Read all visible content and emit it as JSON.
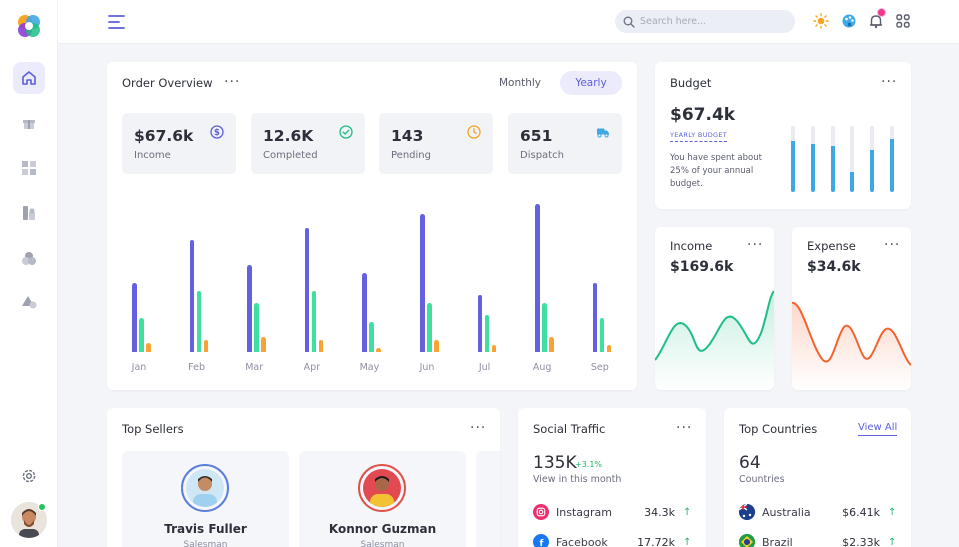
{
  "topbar": {
    "search_placeholder": "Search here..."
  },
  "sidebar": {
    "items": [
      "home",
      "gift",
      "grid",
      "pages",
      "shapes",
      "triangle"
    ],
    "settings": "settings",
    "online_status_color": "#22c55e"
  },
  "order_overview": {
    "title": "Order Overview",
    "toggle_monthly": "Monthly",
    "toggle_yearly": "Yearly",
    "stats": [
      {
        "value": "$67.6k",
        "label": "Income",
        "icon": "dollar-icon",
        "color": "#5d5fdb"
      },
      {
        "value": "12.6K",
        "label": "Completed",
        "icon": "check-circle-icon",
        "color": "#1fbf84"
      },
      {
        "value": "143",
        "label": "Pending",
        "icon": "clock-icon",
        "color": "#f5a524"
      },
      {
        "value": "651",
        "label": "Dispatch",
        "icon": "truck-icon",
        "color": "#3ea8e5"
      }
    ]
  },
  "chart_data": {
    "type": "bar",
    "title": "Order Overview",
    "categories": [
      "Jan",
      "Feb",
      "Mar",
      "Apr",
      "May",
      "Jun",
      "Jul",
      "Aug",
      "Sep"
    ],
    "series": [
      {
        "name": "Income",
        "color": "#6461e0",
        "values": [
          46,
          75,
          58,
          83,
          53,
          92,
          38,
          99,
          46
        ]
      },
      {
        "name": "Completed",
        "color": "#3fdf9f",
        "values": [
          23,
          41,
          33,
          41,
          20,
          33,
          25,
          33,
          23
        ]
      },
      {
        "name": "Pending",
        "color": "#f7a335",
        "values": [
          6,
          8,
          10,
          8,
          3,
          8,
          5,
          10,
          5
        ]
      }
    ],
    "ylim": [
      0,
      100
    ],
    "xlabel": "",
    "ylabel": ""
  },
  "budget": {
    "title": "Budget",
    "amount": "$67.4k",
    "subtitle": "YEARLY BUDGET",
    "description": "You have spent about 25% of your annual budget.",
    "bars": [
      0.78,
      0.72,
      0.7,
      0.3,
      0.64,
      0.8
    ]
  },
  "income": {
    "title": "Income",
    "amount": "$169.6k",
    "color": "#1fbf84"
  },
  "expense": {
    "title": "Expense",
    "amount": "$34.6k",
    "color": "#f4622e"
  },
  "top_sellers": {
    "title": "Top Sellers",
    "sellers": [
      {
        "name": "Travis Fuller",
        "role": "Salesman"
      },
      {
        "name": "Konnor Guzman",
        "role": "Salesman"
      }
    ]
  },
  "social_traffic": {
    "title": "Social Traffic",
    "total": "135K",
    "change": "+3.1%",
    "subtitle": "View in this month",
    "rows": [
      {
        "name": "Instagram",
        "value": "34.3k",
        "trend": "↑"
      },
      {
        "name": "Facebook",
        "value": "17.72k",
        "trend": "↑"
      }
    ]
  },
  "top_countries": {
    "title": "Top Countries",
    "view_all": "View All",
    "count": "64",
    "subtitle": "Countries",
    "rows": [
      {
        "name": "Australia",
        "value": "$6.41k",
        "trend": "↑"
      },
      {
        "name": "Brazil",
        "value": "$2.33k",
        "trend": "↑"
      }
    ]
  }
}
